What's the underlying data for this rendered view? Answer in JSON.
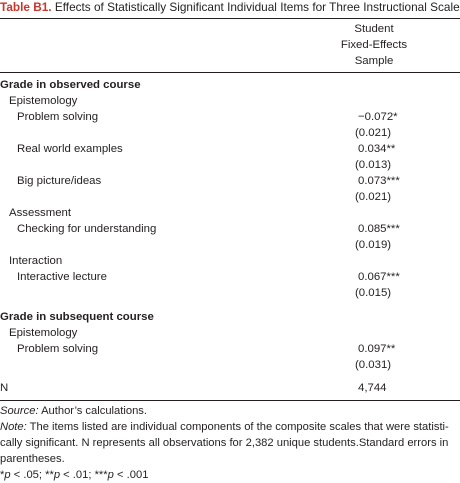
{
  "caption": {
    "label": "Table B1.",
    "title": "Effects of Statistically Significant Individual Items for Three Instructional Scales"
  },
  "column_header": {
    "line1": "Student",
    "line2": "Fixed-Effects",
    "line3": "Sample"
  },
  "sections": {
    "observed": {
      "title": "Grade in observed course",
      "epistemology": {
        "title": "Epistemology",
        "problem_solving": {
          "label": "Problem solving",
          "coef": "−0.072*",
          "se": "(0.021)"
        },
        "real_world": {
          "label": "Real world examples",
          "coef": "0.034**",
          "se": "(0.013)"
        },
        "big_picture": {
          "label": "Big picture/ideas",
          "coef": "0.073***",
          "se": "(0.021)"
        }
      },
      "assessment": {
        "title": "Assessment",
        "checking": {
          "label": "Checking for understanding",
          "coef": "0.085***",
          "se": "(0.019)"
        }
      },
      "interaction": {
        "title": "Interaction",
        "lecture": {
          "label": "Interactive lecture",
          "coef": "0.067***",
          "se": "(0.015)"
        }
      }
    },
    "subsequent": {
      "title": "Grade in subsequent course",
      "epistemology": {
        "title": "Epistemology",
        "problem_solving": {
          "label": "Problem solving",
          "coef": "0.097**",
          "se": "(0.031)"
        }
      }
    }
  },
  "n_row": {
    "label": "N",
    "value": "4,744"
  },
  "notes": {
    "source_label": "Source:",
    "source_text": "Author’s calculations.",
    "note_label": "Note:",
    "note_line1": "The items listed are individual components of the composite scales that were statisti-",
    "note_line2": "cally significant. N represents all observations for 2,382 unique students.Standard errors in",
    "note_line3": "parentheses.",
    "sig_p1": "p",
    "sig_part1": " < .05; **",
    "sig_p2": "p",
    "sig_part2": " < .01; ***",
    "sig_p3": "p",
    "sig_part3": " < .001",
    "sig_star": "*"
  }
}
